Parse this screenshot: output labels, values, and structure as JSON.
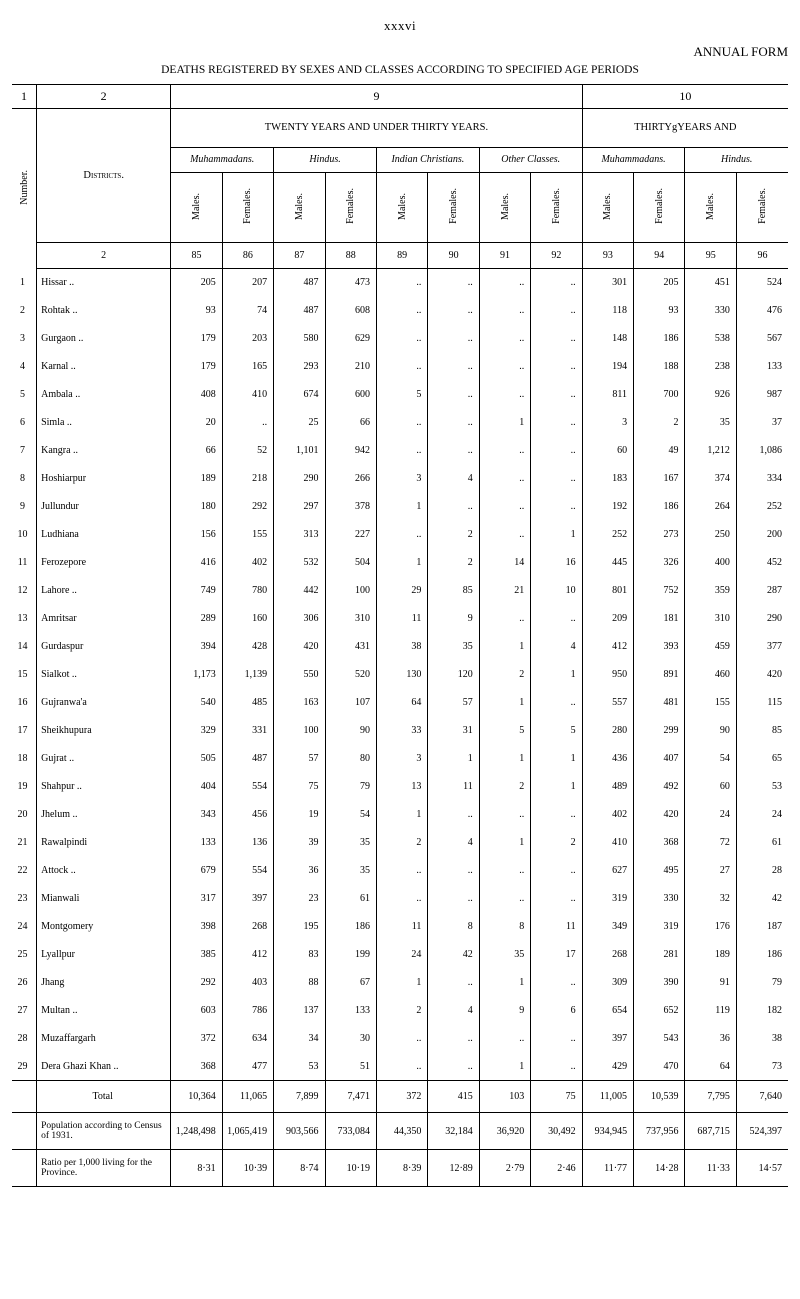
{
  "page_number_roman": "xxxvi",
  "form_title": "ANNUAL FORM",
  "subtitle": "DEATHS REGISTERED BY SEXES AND CLASSES ACCORDING TO SPECIFIED AGE PERIODS",
  "toprow": {
    "c2": "2",
    "c9": "9",
    "c10": "10"
  },
  "age_bands": {
    "left": "TWENTY YEARS AND UNDER THIRTY YEARS.",
    "right": "THIRTYgYEARS AND"
  },
  "districts_label": "Districts.",
  "group_labels": {
    "muh": "Muhammadans.",
    "hin": "Hindus.",
    "ich": "Indian Christians.",
    "oth": "Other Classes."
  },
  "number_label": "Number.",
  "male_label": "Males.",
  "female_label": "Females.",
  "colnums": {
    "n1": "1",
    "n2": "2",
    "c85": "85",
    "c86": "86",
    "c87": "87",
    "c88": "88",
    "c89": "89",
    "c90": "90",
    "c91": "91",
    "c92": "92",
    "c93": "93",
    "c94": "94",
    "c95": "95",
    "c96": "96"
  },
  "rows": [
    {
      "n": "1",
      "d": "Hissar ..",
      "v": [
        "205",
        "207",
        "487",
        "473",
        "..",
        "..",
        "..",
        "..",
        "301",
        "205",
        "451",
        "524"
      ]
    },
    {
      "n": "2",
      "d": "Rohtak ..",
      "v": [
        "93",
        "74",
        "487",
        "608",
        "..",
        "..",
        "..",
        "..",
        "118",
        "93",
        "330",
        "476"
      ]
    },
    {
      "n": "3",
      "d": "Gurgaon ..",
      "v": [
        "179",
        "203",
        "580",
        "629",
        "..",
        "..",
        "..",
        "..",
        "148",
        "186",
        "538",
        "567"
      ]
    },
    {
      "n": "4",
      "d": "Karnal ..",
      "v": [
        "179",
        "165",
        "293",
        "210",
        "..",
        "..",
        "..",
        "..",
        "194",
        "188",
        "238",
        "133"
      ]
    },
    {
      "n": "5",
      "d": "Ambala ..",
      "v": [
        "408",
        "410",
        "674",
        "600",
        "5",
        "..",
        "..",
        "..",
        "811",
        "700",
        "926",
        "987"
      ]
    },
    {
      "n": "6",
      "d": "Simla ..",
      "v": [
        "20",
        "..",
        "25",
        "66",
        "..",
        "..",
        "1",
        "..",
        "3",
        "2",
        "35",
        "37"
      ]
    },
    {
      "n": "7",
      "d": "Kangra ..",
      "v": [
        "66",
        "52",
        "1,101",
        "942",
        "..",
        "..",
        "..",
        "..",
        "60",
        "49",
        "1,212",
        "1,086"
      ]
    },
    {
      "n": "8",
      "d": "Hoshiarpur",
      "v": [
        "189",
        "218",
        "290",
        "266",
        "3",
        "4",
        "..",
        "..",
        "183",
        "167",
        "374",
        "334"
      ]
    },
    {
      "n": "9",
      "d": "Jullundur",
      "v": [
        "180",
        "292",
        "297",
        "378",
        "1",
        "..",
        "..",
        "..",
        "192",
        "186",
        "264",
        "252"
      ]
    },
    {
      "n": "10",
      "d": "Ludhiana",
      "v": [
        "156",
        "155",
        "313",
        "227",
        "..",
        "2",
        "..",
        "1",
        "252",
        "273",
        "250",
        "200"
      ]
    },
    {
      "n": "11",
      "d": "Ferozepore",
      "v": [
        "416",
        "402",
        "532",
        "504",
        "1",
        "2",
        "14",
        "16",
        "445",
        "326",
        "400",
        "452"
      ]
    },
    {
      "n": "12",
      "d": "Lahore ..",
      "v": [
        "749",
        "780",
        "442",
        "100",
        "29",
        "85",
        "21",
        "10",
        "801",
        "752",
        "359",
        "287"
      ]
    },
    {
      "n": "13",
      "d": "Amritsar",
      "v": [
        "289",
        "160",
        "306",
        "310",
        "11",
        "9",
        "..",
        "..",
        "209",
        "181",
        "310",
        "290"
      ]
    },
    {
      "n": "14",
      "d": "Gurdaspur",
      "v": [
        "394",
        "428",
        "420",
        "431",
        "38",
        "35",
        "1",
        "4",
        "412",
        "393",
        "459",
        "377"
      ]
    },
    {
      "n": "15",
      "d": "Sialkot ..",
      "v": [
        "1,173",
        "1,139",
        "550",
        "520",
        "130",
        "120",
        "2",
        "1",
        "950",
        "891",
        "460",
        "420"
      ]
    },
    {
      "n": "16",
      "d": "Gujranwa'a",
      "v": [
        "540",
        "485",
        "163",
        "107",
        "64",
        "57",
        "1",
        "..",
        "557",
        "481",
        "155",
        "115"
      ]
    },
    {
      "n": "17",
      "d": "Sheikhupura",
      "v": [
        "329",
        "331",
        "100",
        "90",
        "33",
        "31",
        "5",
        "5",
        "280",
        "299",
        "90",
        "85"
      ]
    },
    {
      "n": "18",
      "d": "Gujrat ..",
      "v": [
        "505",
        "487",
        "57",
        "80",
        "3",
        "1",
        "1",
        "1",
        "436",
        "407",
        "54",
        "65"
      ]
    },
    {
      "n": "19",
      "d": "Shahpur ..",
      "v": [
        "404",
        "554",
        "75",
        "79",
        "13",
        "11",
        "2",
        "1",
        "489",
        "492",
        "60",
        "53"
      ]
    },
    {
      "n": "20",
      "d": "Jhelum ..",
      "v": [
        "343",
        "456",
        "19",
        "54",
        "1",
        "..",
        "..",
        "..",
        "402",
        "420",
        "24",
        "24"
      ]
    },
    {
      "n": "21",
      "d": "Rawalpindi",
      "v": [
        "133",
        "136",
        "39",
        "35",
        "2",
        "4",
        "1",
        "2",
        "410",
        "368",
        "72",
        "61"
      ]
    },
    {
      "n": "22",
      "d": "Attock ..",
      "v": [
        "679",
        "554",
        "36",
        "35",
        "..",
        "..",
        "..",
        "..",
        "627",
        "495",
        "27",
        "28"
      ]
    },
    {
      "n": "23",
      "d": "Mianwali",
      "v": [
        "317",
        "397",
        "23",
        "61",
        "..",
        "..",
        "..",
        "..",
        "319",
        "330",
        "32",
        "42"
      ]
    },
    {
      "n": "24",
      "d": "Montgomery",
      "v": [
        "398",
        "268",
        "195",
        "186",
        "11",
        "8",
        "8",
        "11",
        "349",
        "319",
        "176",
        "187"
      ]
    },
    {
      "n": "25",
      "d": "Lyallpur",
      "v": [
        "385",
        "412",
        "83",
        "199",
        "24",
        "42",
        "35",
        "17",
        "268",
        "281",
        "189",
        "186"
      ]
    },
    {
      "n": "26",
      "d": "Jhang",
      "v": [
        "292",
        "403",
        "88",
        "67",
        "1",
        "..",
        "1",
        "..",
        "309",
        "390",
        "91",
        "79"
      ]
    },
    {
      "n": "27",
      "d": "Multan ..",
      "v": [
        "603",
        "786",
        "137",
        "133",
        "2",
        "4",
        "9",
        "6",
        "654",
        "652",
        "119",
        "182"
      ]
    },
    {
      "n": "28",
      "d": "Muzaffargarh",
      "v": [
        "372",
        "634",
        "34",
        "30",
        "..",
        "..",
        "..",
        "..",
        "397",
        "543",
        "36",
        "38"
      ]
    },
    {
      "n": "29",
      "d": "Dera Ghazi Khan ..",
      "v": [
        "368",
        "477",
        "53",
        "51",
        "..",
        "..",
        "1",
        "..",
        "429",
        "470",
        "64",
        "73"
      ]
    }
  ],
  "total_label": "Total",
  "total": [
    "10,364",
    "11,065",
    "7,899",
    "7,471",
    "372",
    "415",
    "103",
    "75",
    "11,005",
    "10,539",
    "7,795",
    "7,640"
  ],
  "population_label": "Population according to Census of 1931.",
  "population": [
    "1,248,498",
    "1,065,419",
    "903,566",
    "733,084",
    "44,350",
    "32,184",
    "36,920",
    "30,492",
    "934,945",
    "737,956",
    "687,715",
    "524,397"
  ],
  "ratio_label": "Ratio per 1,000 living for the Province.",
  "ratio": [
    "8·31",
    "10·39",
    "8·74",
    "10·19",
    "8·39",
    "12·89",
    "2·79",
    "2·46",
    "11·77",
    "14·28",
    "11·33",
    "14·57"
  ]
}
